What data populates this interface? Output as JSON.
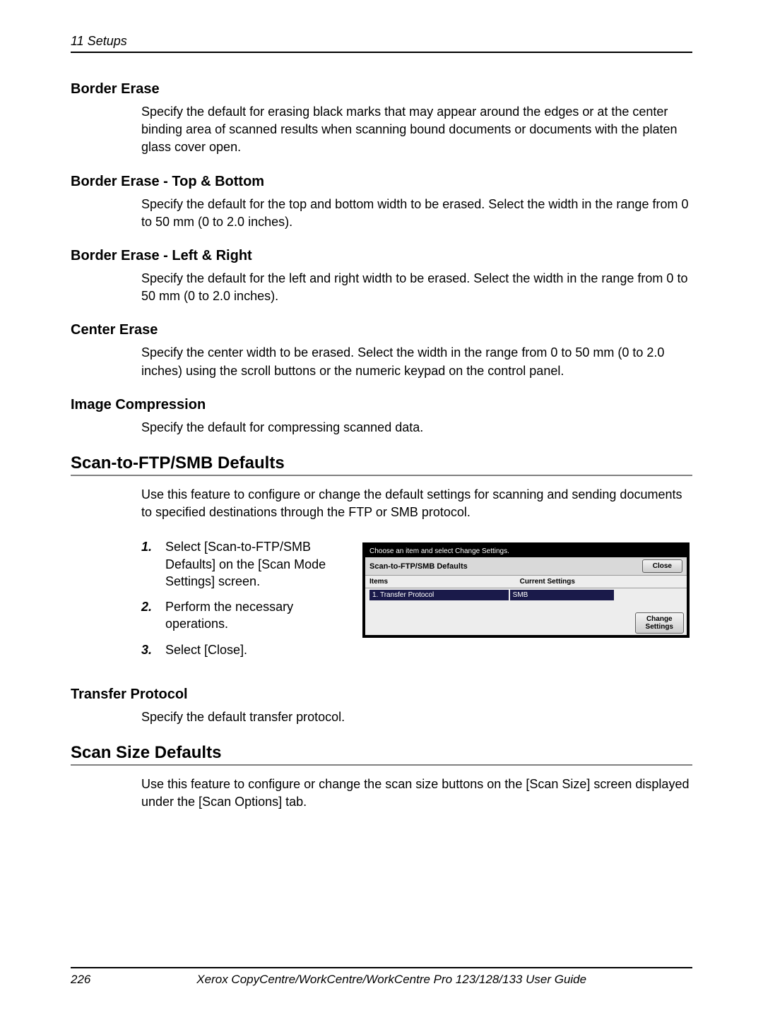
{
  "header": {
    "chapter": "11 Setups"
  },
  "sections": {
    "borderErase": {
      "title": "Border Erase",
      "text": "Specify the default for erasing black marks that may appear around the edges or at the center binding area of scanned results when scanning bound documents or documents with the platen glass cover open."
    },
    "borderTopBottom": {
      "title": "Border Erase - Top & Bottom",
      "text": "Specify the default for the top and bottom width to be erased. Select the width in the range from 0 to 50 mm (0 to 2.0 inches)."
    },
    "borderLeftRight": {
      "title": "Border Erase - Left & Right",
      "text": "Specify the default for the left and right width to be erased. Select the width in the range from 0 to 50 mm (0 to 2.0 inches)."
    },
    "centerErase": {
      "title": "Center Erase",
      "text": "Specify the center width to be erased. Select the width in the range from 0 to 50 mm (0 to 2.0 inches) using the scroll buttons or the numeric keypad on the control panel."
    },
    "imageCompression": {
      "title": "Image Compression",
      "text": "Specify the default for compressing scanned data."
    },
    "scanToFtp": {
      "title": "Scan-to-FTP/SMB Defaults",
      "intro": "Use this feature to configure or change the default settings for scanning and sending documents to specified destinations through the FTP or SMB protocol.",
      "steps": {
        "s1": "Select [Scan-to-FTP/SMB Defaults] on the [Scan Mode Settings] screen.",
        "s2": "Perform the necessary operations.",
        "s3": "Select [Close]."
      }
    },
    "transferProtocol": {
      "title": "Transfer Protocol",
      "text": "Specify the default transfer protocol."
    },
    "scanSize": {
      "title": "Scan Size Defaults",
      "intro": "Use this feature to configure or change the scan size buttons on the  [Scan Size] screen displayed under the [Scan Options] tab."
    }
  },
  "simScreen": {
    "instruction": "Choose an item and select Change Settings.",
    "title": "Scan-to-FTP/SMB  Defaults",
    "closeBtn": "Close",
    "col1": "Items",
    "col2": "Current Settings",
    "rowNum": "1.",
    "rowLabel": "Transfer Protocol",
    "rowValue": "SMB",
    "changeBtn1": "Change",
    "changeBtn2": "Settings"
  },
  "footer": {
    "page": "226",
    "title": "Xerox CopyCentre/WorkCentre/WorkCentre Pro 123/128/133 User Guide"
  }
}
